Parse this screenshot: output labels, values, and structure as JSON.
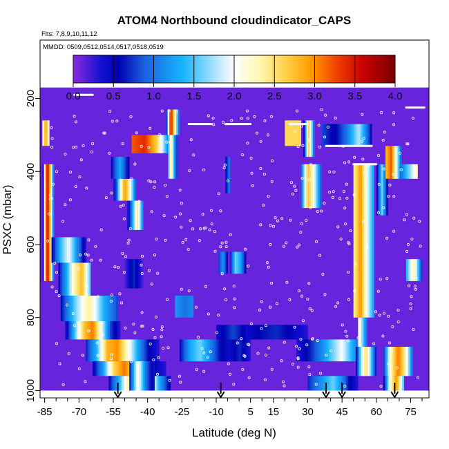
{
  "chart_data": {
    "type": "heatmap",
    "title": "ATOM4 Northbound cloudindicator_CAPS",
    "flights_label": "Flts: 7,8,9,10,11,12",
    "dates_label": "MMDD: 0509,0512,0514,0517,0518,0519",
    "xlabel": "Latitude (deg N)",
    "ylabel": "PSXC (mbar)",
    "xlim": [
      -87,
      83
    ],
    "ylim": [
      1020,
      40
    ],
    "x_ticks": [
      -85,
      -70,
      -55,
      -40,
      -25,
      -10,
      5,
      15,
      30,
      45,
      60,
      75
    ],
    "x_tick_labels": [
      "-85",
      "-70",
      "-55",
      "-40",
      "-25",
      "-10",
      "5",
      "15",
      "30",
      "45",
      "60",
      "75"
    ],
    "x_minor_ticks": [
      -80,
      -75,
      -65,
      -60,
      -50,
      -45,
      -35,
      -30,
      -20,
      -15,
      -5,
      0,
      10,
      20,
      25,
      35,
      40,
      50,
      55,
      65,
      70,
      80
    ],
    "y_ticks": [
      200,
      400,
      600,
      800,
      1000
    ],
    "y_tick_labels": [
      "200",
      "400",
      "600",
      "800",
      "1000"
    ],
    "colorbar": {
      "min": 0.0,
      "max": 4.0,
      "ticks": [
        0.0,
        0.5,
        1.0,
        1.5,
        2.0,
        2.5,
        3.0,
        3.5,
        4.0
      ],
      "tick_labels": [
        "0.0",
        "0.5",
        "1.0",
        "1.5",
        "2.0",
        "2.5",
        "3.0",
        "3.5",
        "4.0"
      ],
      "colors": [
        "#8a2be2",
        "#1010d0",
        "#0000b0",
        "#1a5fe0",
        "#16b4ff",
        "#c8ecff",
        "#ffffff",
        "#fff7b0",
        "#ffd24a",
        "#ff9a00",
        "#f04000",
        "#c80000",
        "#7a0000"
      ],
      "stops": [
        0,
        0.09,
        0.14,
        0.22,
        0.34,
        0.46,
        0.5,
        0.58,
        0.66,
        0.74,
        0.82,
        0.9,
        1
      ]
    },
    "background_value": 0.1,
    "curtains": [
      {
        "x": [
          -87,
          83
        ],
        "p": [
          170,
          1000
        ],
        "v": [
          0.05
        ]
      },
      {
        "x": [
          -86,
          -83
        ],
        "p": [
          260,
          330
        ],
        "v": [
          2.2,
          3.0,
          2.2
        ]
      },
      {
        "x": [
          -86,
          -81
        ],
        "p": [
          380,
          700
        ],
        "v": [
          0.3,
          3.2,
          3.4,
          2.6,
          1.2
        ]
      },
      {
        "x": [
          -82,
          -67
        ],
        "p": [
          580,
          650
        ],
        "v": [
          0.5,
          1.4,
          2.0,
          1.2,
          0.4
        ]
      },
      {
        "x": [
          -79,
          -65
        ],
        "p": [
          650,
          740
        ],
        "v": [
          0.6,
          1.3,
          2.3,
          2.8,
          1.6
        ]
      },
      {
        "x": [
          -78,
          -53
        ],
        "p": [
          740,
          810
        ],
        "v": [
          0.6,
          1.6,
          2.4,
          1.4,
          0.8
        ]
      },
      {
        "x": [
          -76,
          -52
        ],
        "p": [
          810,
          860
        ],
        "v": [
          0.4,
          1.5,
          2.7,
          3.1,
          2.0,
          0.8,
          0.3
        ]
      },
      {
        "x": [
          -67,
          -35
        ],
        "p": [
          860,
          920
        ],
        "v": [
          0.7,
          1.4,
          2.8,
          3.0,
          2.2,
          1.3,
          0.6,
          0.3
        ]
      },
      {
        "x": [
          -64,
          -32
        ],
        "p": [
          920,
          960
        ],
        "v": [
          0.5,
          1.3,
          2.6,
          3.1,
          2.5,
          1.2,
          0.5,
          0.3
        ]
      },
      {
        "x": [
          -57,
          -30
        ],
        "p": [
          960,
          1000
        ],
        "v": [
          0.6,
          1.4,
          2.5,
          2.9,
          2.4,
          1.3,
          0.5
        ]
      },
      {
        "x": [
          -48,
          -37
        ],
        "p": [
          920,
          1000
        ],
        "v": [
          0.7,
          2.2,
          1.0,
          0.4
        ]
      },
      {
        "x": [
          -47,
          -30
        ],
        "p": [
          300,
          350
        ],
        "v": [
          3.2,
          3.4,
          2.6,
          0.9
        ]
      },
      {
        "x": [
          -55,
          -45
        ],
        "p": [
          420,
          480
        ],
        "v": [
          0.3,
          1.7,
          3.0,
          2.2,
          0.9
        ]
      },
      {
        "x": [
          -49,
          -42
        ],
        "p": [
          480,
          560
        ],
        "v": [
          0.3,
          1.3,
          2.4,
          1.2
        ]
      },
      {
        "x": [
          -56,
          -48
        ],
        "p": [
          360,
          420
        ],
        "v": [
          0.6,
          1.3,
          0.5
        ]
      },
      {
        "x": [
          -50,
          -42
        ],
        "p": [
          640,
          720
        ],
        "v": [
          0.2,
          0.7,
          0.2
        ]
      },
      {
        "x": [
          -32,
          -26
        ],
        "p": [
          230,
          300
        ],
        "v": [
          0.8,
          3.6,
          2.4,
          1.0
        ]
      },
      {
        "x": [
          -31,
          -27
        ],
        "p": [
          300,
          420
        ],
        "v": [
          1.6,
          2.6,
          1.3,
          0.8
        ]
      },
      {
        "x": [
          -28,
          -20
        ],
        "p": [
          740,
          800
        ],
        "v": [
          1.2,
          1.0,
          1.1
        ]
      },
      {
        "x": [
          -26,
          5
        ],
        "p": [
          860,
          920
        ],
        "v": [
          0.6,
          1.3,
          1.6,
          1.1,
          0.6,
          0.4,
          0.7,
          0.3
        ]
      },
      {
        "x": [
          -10,
          5
        ],
        "p": [
          820,
          860
        ],
        "v": [
          0.4,
          0.8,
          0.4
        ]
      },
      {
        "x": [
          -9,
          -5
        ],
        "p": [
          620,
          680
        ],
        "v": [
          0.8,
          1.2,
          0.6
        ]
      },
      {
        "x": [
          -4,
          3
        ],
        "p": [
          620,
          680
        ],
        "v": [
          0.7,
          1.6,
          1.3,
          0.6
        ]
      },
      {
        "x": [
          -6,
          -4
        ],
        "p": [
          360,
          460
        ],
        "v": [
          0.6,
          1.0
        ]
      },
      {
        "x": [
          3,
          30
        ],
        "p": [
          820,
          860
        ],
        "v": [
          0.4,
          0.6,
          0.7,
          0.5,
          0.3
        ]
      },
      {
        "x": [
          20,
          27
        ],
        "p": [
          260,
          330
        ],
        "v": [
          2.6
        ]
      },
      {
        "x": [
          27,
          36
        ],
        "p": [
          380,
          500
        ],
        "v": [
          1.0,
          2.8,
          2.0,
          0.9
        ]
      },
      {
        "x": [
          28,
          33
        ],
        "p": [
          260,
          360
        ],
        "v": [
          0.5,
          2.6,
          1.0
        ]
      },
      {
        "x": [
          25,
          55
        ],
        "p": [
          860,
          920
        ],
        "v": [
          0.3,
          0.6,
          1.0,
          1.5,
          2.0,
          1.3,
          0.6
        ]
      },
      {
        "x": [
          30,
          52
        ],
        "p": [
          960,
          1000
        ],
        "v": [
          0.7,
          1.0,
          1.3,
          1.6,
          1.2,
          0.6,
          0.3
        ]
      },
      {
        "x": [
          36,
          58
        ],
        "p": [
          270,
          330
        ],
        "v": [
          0.8,
          0.5,
          1.0,
          1.8,
          0.6
        ]
      },
      {
        "x": [
          50,
          59
        ],
        "p": [
          380,
          800
        ],
        "v": [
          2.4,
          3.0,
          2.0,
          1.3
        ]
      },
      {
        "x": [
          52,
          56
        ],
        "p": [
          800,
          880
        ],
        "v": [
          2.2,
          1.0
        ]
      },
      {
        "x": [
          51,
          60
        ],
        "p": [
          880,
          960
        ],
        "v": [
          0.6,
          1.8,
          2.6,
          1.6,
          0.7
        ]
      },
      {
        "x": [
          60,
          65
        ],
        "p": [
          380,
          520
        ],
        "v": [
          0.5,
          1.6,
          0.6
        ]
      },
      {
        "x": [
          64,
          71
        ],
        "p": [
          330,
          420
        ],
        "v": [
          2.8,
          3.2,
          2.2,
          0.9
        ]
      },
      {
        "x": [
          63,
          76
        ],
        "p": [
          880,
          960
        ],
        "v": [
          0.8,
          2.3,
          3.1,
          2.4,
          1.0
        ]
      },
      {
        "x": [
          63,
          72
        ],
        "p": [
          960,
          1000
        ],
        "v": [
          0.5,
          2.2,
          3.0,
          1.6
        ]
      },
      {
        "x": [
          73,
          80
        ],
        "p": [
          640,
          700
        ],
        "v": [
          1.4,
          2.4,
          0.8
        ]
      },
      {
        "x": [
          71,
          78
        ],
        "p": [
          380,
          420
        ],
        "v": [
          1.1,
          2.2
        ]
      }
    ],
    "arrows_latitude": [
      -53,
      -8,
      38,
      45,
      68
    ],
    "white_segments": [
      {
        "x": [
          -72,
          -64
        ],
        "p": [
          190
        ]
      },
      {
        "x": [
          -22,
          -12
        ],
        "p": [
          270
        ]
      },
      {
        "x": [
          -6,
          5
        ],
        "p": [
          270
        ]
      },
      {
        "x": [
          22,
          30
        ],
        "p": [
          270
        ]
      },
      {
        "x": [
          38,
          58
        ],
        "p": [
          330
        ]
      },
      {
        "x": [
          50,
          60
        ],
        "p": [
          380
        ]
      },
      {
        "x": [
          73,
          81
        ],
        "p": [
          225
        ]
      }
    ]
  }
}
